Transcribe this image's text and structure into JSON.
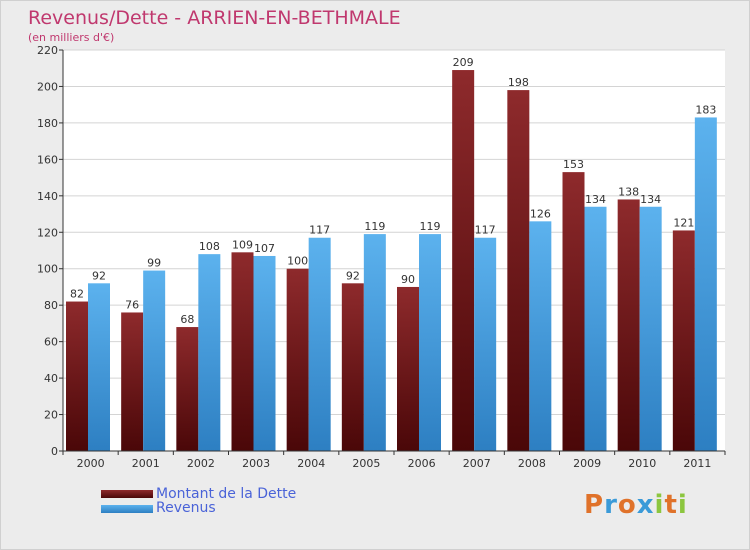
{
  "title": "Revenus/Dette - ARRIEN-EN-BETHMALE",
  "subtitle": "(en milliers d'€)",
  "chart_data": {
    "type": "bar",
    "categories": [
      "2000",
      "2001",
      "2002",
      "2003",
      "2004",
      "2005",
      "2006",
      "2007",
      "2008",
      "2009",
      "2010",
      "2011"
    ],
    "series": [
      {
        "name": "Montant de la Dette",
        "values": [
          82,
          76,
          68,
          109,
          100,
          92,
          90,
          209,
          198,
          153,
          138,
          121
        ],
        "color": "#7a1a1c"
      },
      {
        "name": "Revenus",
        "values": [
          92,
          99,
          108,
          107,
          117,
          119,
          119,
          117,
          126,
          134,
          134,
          183
        ],
        "color": "#4aa3e6"
      }
    ],
    "ylim": [
      0,
      220
    ],
    "yticks": [
      0,
      20,
      40,
      60,
      80,
      100,
      120,
      140,
      160,
      180,
      200,
      220
    ],
    "grid": true,
    "legend": "bottom-left"
  },
  "logo": {
    "letters": [
      "P",
      "r",
      "o",
      "x",
      "i",
      "t",
      "i"
    ],
    "colors": [
      "#e0722a",
      "#3a9ad8",
      "#e0722a",
      "#3a9ad8",
      "#8cc63f",
      "#e0722a",
      "#8cc63f"
    ]
  }
}
